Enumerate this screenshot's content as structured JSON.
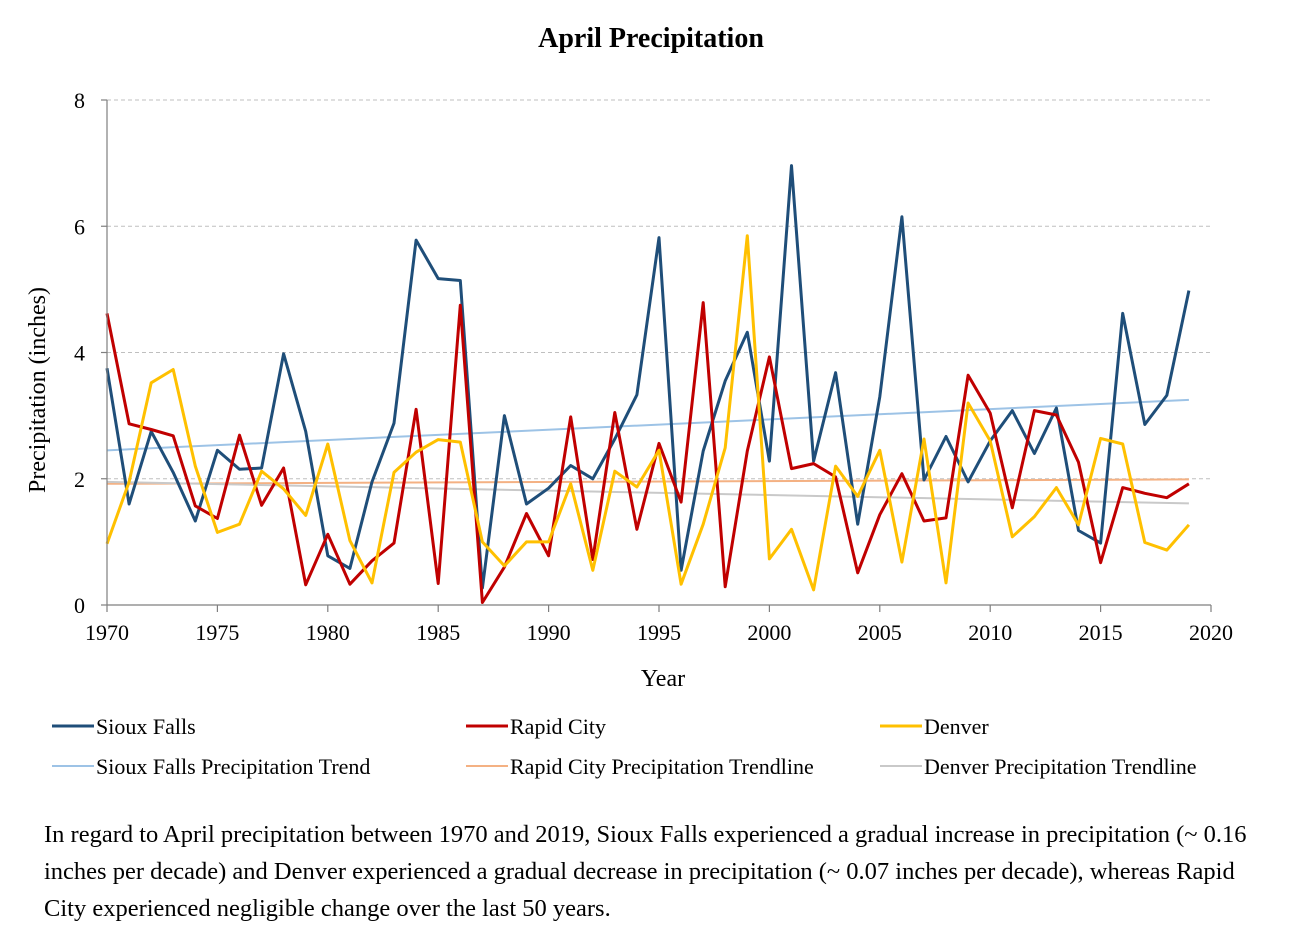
{
  "chart_data": {
    "type": "line",
    "title": "April Precipitation",
    "xlabel": "Year",
    "ylabel": "Precipitation (inches)",
    "xlim": [
      1970,
      2020
    ],
    "ylim": [
      0,
      8
    ],
    "x_ticks": [
      1970,
      1975,
      1980,
      1985,
      1990,
      1995,
      2000,
      2005,
      2010,
      2015,
      2020
    ],
    "y_ticks": [
      0,
      2,
      4,
      6,
      8
    ],
    "grid": "horizontal dashed",
    "legend_position": "bottom",
    "x": [
      1970,
      1971,
      1972,
      1973,
      1974,
      1975,
      1976,
      1977,
      1978,
      1979,
      1980,
      1981,
      1982,
      1983,
      1984,
      1985,
      1986,
      1987,
      1988,
      1989,
      1990,
      1991,
      1992,
      1993,
      1994,
      1995,
      1996,
      1997,
      1998,
      1999,
      2000,
      2001,
      2002,
      2003,
      2004,
      2005,
      2006,
      2007,
      2008,
      2009,
      2010,
      2011,
      2012,
      2013,
      2014,
      2015,
      2016,
      2017,
      2018,
      2019
    ],
    "series": [
      {
        "name": "Sioux Falls",
        "color": "#1f4e79",
        "width": 3,
        "values": [
          3.75,
          1.6,
          2.75,
          2.1,
          1.33,
          2.45,
          2.15,
          2.17,
          3.98,
          2.75,
          0.78,
          0.58,
          1.95,
          2.88,
          5.78,
          5.17,
          5.14,
          0.27,
          3.0,
          1.6,
          1.85,
          2.21,
          2.0,
          2.63,
          3.33,
          5.82,
          0.55,
          2.44,
          3.55,
          4.32,
          2.28,
          6.96,
          2.28,
          3.68,
          1.28,
          3.3,
          6.15,
          1.98,
          2.67,
          1.95,
          2.6,
          3.08,
          2.4,
          3.12,
          1.18,
          0.98,
          4.62,
          2.86,
          3.32,
          4.98
        ]
      },
      {
        "name": "Rapid City",
        "color": "#c00000",
        "width": 3,
        "values": [
          4.62,
          2.87,
          2.78,
          2.68,
          1.57,
          1.37,
          2.69,
          1.58,
          2.17,
          0.32,
          1.12,
          0.33,
          0.7,
          0.98,
          3.1,
          0.34,
          4.75,
          0.04,
          0.6,
          1.45,
          0.78,
          2.98,
          0.72,
          3.05,
          1.2,
          2.56,
          1.63,
          4.79,
          0.29,
          2.44,
          3.93,
          2.16,
          2.24,
          2.03,
          0.51,
          1.43,
          2.08,
          1.33,
          1.38,
          3.64,
          3.04,
          1.54,
          3.08,
          3.01,
          2.26,
          0.67,
          1.86,
          1.77,
          1.7,
          1.92
        ]
      },
      {
        "name": "Denver",
        "color": "#ffc000",
        "width": 3,
        "values": [
          0.97,
          1.95,
          3.52,
          3.73,
          2.2,
          1.15,
          1.28,
          2.12,
          1.84,
          1.42,
          2.55,
          1.02,
          0.35,
          2.1,
          2.42,
          2.62,
          2.58,
          1.0,
          0.62,
          1.0,
          1.0,
          1.92,
          0.55,
          2.12,
          1.87,
          2.45,
          0.33,
          1.28,
          2.49,
          5.85,
          0.73,
          1.2,
          0.24,
          2.2,
          1.72,
          2.45,
          0.68,
          2.63,
          0.35,
          3.2,
          2.6,
          1.08,
          1.4,
          1.86,
          1.27,
          2.64,
          2.55,
          0.99,
          0.87,
          1.27
        ]
      }
    ],
    "trendlines": [
      {
        "name": "Sioux Falls Precipitation Trend",
        "color": "#9dc3e6",
        "width": 2,
        "start": 2.45,
        "end": 3.25
      },
      {
        "name": "Rapid City Precipitation Trendline",
        "color": "#f4b183",
        "width": 2,
        "start": 1.92,
        "end": 1.99
      },
      {
        "name": "Denver Precipitation Trendline",
        "color": "#c9c9c9",
        "width": 2,
        "start": 1.95,
        "end": 1.61
      }
    ]
  },
  "caption": "In regard to April precipitation between 1970 and 2019, Sioux Falls experienced a gradual increase in precipitation (~ 0.16 inches per decade) and Denver experienced a gradual decrease in precipitation (~ 0.07 inches per decade), whereas Rapid City experienced negligible change over the last 50 years."
}
